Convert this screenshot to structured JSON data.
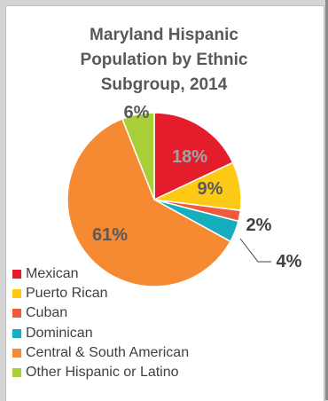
{
  "chart_data": {
    "type": "pie",
    "title_lines": [
      "Maryland Hispanic",
      "Population by Ethnic",
      "Subgroup, 2014"
    ],
    "slices": [
      {
        "name": "Mexican",
        "value": 18,
        "label": "18%",
        "color": "#e31d2b"
      },
      {
        "name": "Puerto Rican",
        "value": 9,
        "label": "9%",
        "color": "#fdc915"
      },
      {
        "name": "Cuban",
        "value": 2,
        "label": "2%",
        "color": "#f05a3c"
      },
      {
        "name": "Dominican",
        "value": 4,
        "label": "4%",
        "color": "#16aebf"
      },
      {
        "name": "Central & South American",
        "value": 61,
        "label": "61%",
        "color": "#f58a32"
      },
      {
        "name": "Other Hispanic or Latino",
        "value": 6,
        "label": "6%",
        "color": "#a8cf38"
      }
    ],
    "legend_position": "bottom-left",
    "label_color": "#595959"
  }
}
